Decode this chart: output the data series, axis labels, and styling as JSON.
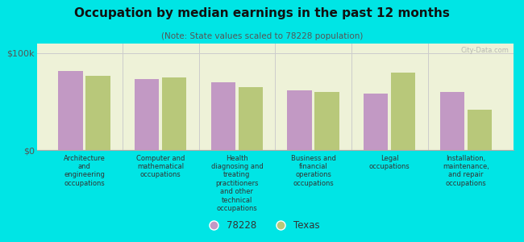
{
  "title": "Occupation by median earnings in the past 12 months",
  "subtitle": "(Note: State values scaled to 78228 population)",
  "background_color": "#00e5e5",
  "plot_bg_color": "#eef2d8",
  "categories": [
    "Architecture\nand\nengineering\noccupations",
    "Computer and\nmathematical\noccupations",
    "Health\ndiagnosing and\ntreating\npractitioners\nand other\ntechnical\noccupations",
    "Business and\nfinancial\noperations\noccupations",
    "Legal\noccupations",
    "Installation,\nmaintenance,\nand repair\noccupations"
  ],
  "values_78228": [
    82000,
    73000,
    70000,
    62000,
    58000,
    60000
  ],
  "values_texas": [
    77000,
    75000,
    65000,
    60000,
    80000,
    42000
  ],
  "color_78228": "#c299c4",
  "color_texas": "#b8c87a",
  "ylim": [
    0,
    110000
  ],
  "ytick_labels": [
    "$0",
    "$100k"
  ],
  "legend_labels": [
    "78228",
    "Texas"
  ],
  "watermark": "City-Data.com"
}
